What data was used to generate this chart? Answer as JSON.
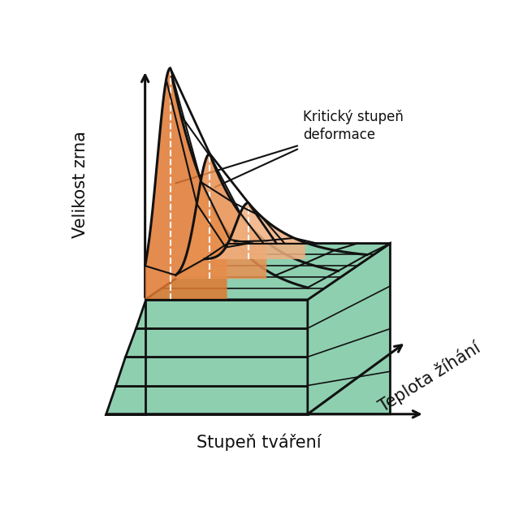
{
  "ylabel": "Velikost zrna",
  "xlabel": "Stupeň tváření",
  "depth_label": "Teplota žíhání",
  "annotation": "Kritický stupeň\ndeformace",
  "bg_color": "#ffffff",
  "box_face_color": "#8ecfb0",
  "box_edge_color": "#111111",
  "orange_fill": "#e07830",
  "orange_fill_light": "#f0b080",
  "orange_alpha": 0.85,
  "curve_color": "#111111",
  "curve_lw": 2.2,
  "label_fontsize": 15
}
